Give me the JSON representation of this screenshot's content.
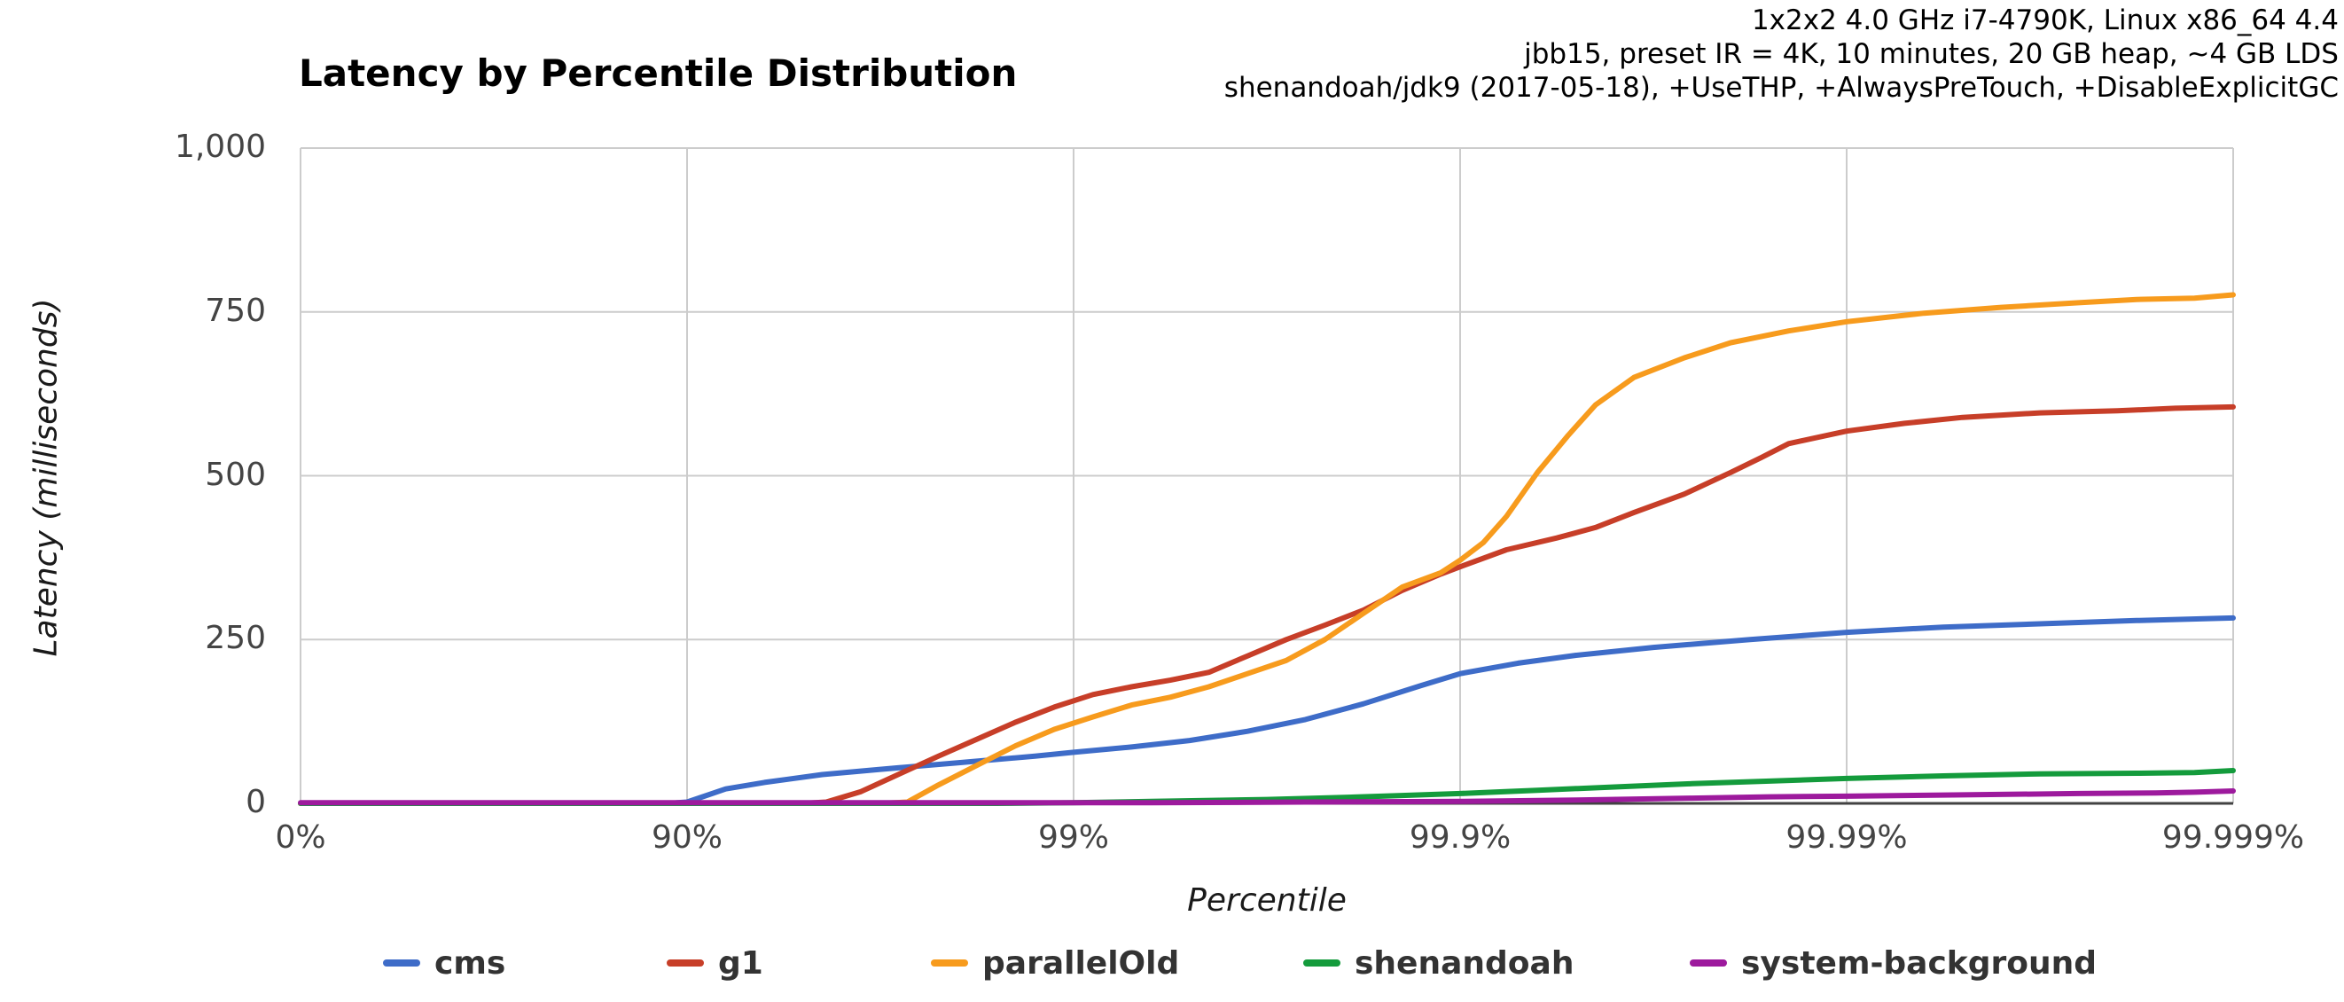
{
  "title": "Latency by Percentile Distribution",
  "header": {
    "lines": [
      "1x2x2 4.0 GHz i7-4790K, Linux x86_64 4.4",
      "jbb15, preset IR = 4K, 10 minutes, 20 GB heap, ~4 GB LDS",
      "shenandoah/jdk9 (2017-05-18), +UseTHP, +AlwaysPreTouch, +DisableExplicitGC"
    ]
  },
  "axes": {
    "y": {
      "title": "Latency (milliseconds)"
    },
    "x": {
      "title": "Percentile"
    }
  },
  "colors": {
    "grid": "#cccccc",
    "axis_line": "#424242",
    "tick_text": "#444444"
  },
  "chart_data": {
    "type": "line",
    "title": "Latency by Percentile Distribution",
    "xlabel": "Percentile",
    "ylabel": "Latency (milliseconds)",
    "x_scale": "log-percentile, x expressed in decades d = -log10(1-p), d range 0..5",
    "x_ticks": [
      {
        "label": "0%",
        "decade": 0
      },
      {
        "label": "90%",
        "decade": 1
      },
      {
        "label": "99%",
        "decade": 2
      },
      {
        "label": "99.9%",
        "decade": 3
      },
      {
        "label": "99.99%",
        "decade": 4
      },
      {
        "label": "99.999%",
        "decade": 5
      }
    ],
    "ylim": [
      0,
      1000
    ],
    "y_ticks": [
      {
        "label": "0",
        "value": 0
      },
      {
        "label": "250",
        "value": 250
      },
      {
        "label": "500",
        "value": 500
      },
      {
        "label": "750",
        "value": 750
      },
      {
        "label": "1,000",
        "value": 1000
      }
    ],
    "grid": true,
    "legend_position": "bottom",
    "series": [
      {
        "name": "cms",
        "color": "#3E6CC8",
        "points": [
          [
            0,
            0
          ],
          [
            0.5,
            0
          ],
          [
            0.95,
            0
          ],
          [
            1.0,
            2
          ],
          [
            1.05,
            12
          ],
          [
            1.1,
            22
          ],
          [
            1.2,
            32
          ],
          [
            1.35,
            44
          ],
          [
            1.5,
            52
          ],
          [
            1.7,
            62
          ],
          [
            1.9,
            72
          ],
          [
            2.0,
            78
          ],
          [
            2.15,
            86
          ],
          [
            2.3,
            96
          ],
          [
            2.45,
            110
          ],
          [
            2.6,
            128
          ],
          [
            2.75,
            152
          ],
          [
            2.9,
            180
          ],
          [
            3.0,
            198
          ],
          [
            3.15,
            214
          ],
          [
            3.3,
            226
          ],
          [
            3.5,
            238
          ],
          [
            3.75,
            250
          ],
          [
            4.0,
            261
          ],
          [
            4.25,
            269
          ],
          [
            4.5,
            274
          ],
          [
            4.75,
            279
          ],
          [
            5.0,
            283
          ]
        ]
      },
      {
        "name": "g1",
        "color": "#C73E28",
        "points": [
          [
            0,
            0
          ],
          [
            1.3,
            0
          ],
          [
            1.36,
            2
          ],
          [
            1.45,
            18
          ],
          [
            1.55,
            45
          ],
          [
            1.65,
            72
          ],
          [
            1.75,
            98
          ],
          [
            1.85,
            124
          ],
          [
            1.95,
            147
          ],
          [
            2.05,
            166
          ],
          [
            2.15,
            178
          ],
          [
            2.25,
            188
          ],
          [
            2.35,
            200
          ],
          [
            2.45,
            225
          ],
          [
            2.55,
            250
          ],
          [
            2.65,
            272
          ],
          [
            2.75,
            295
          ],
          [
            2.85,
            325
          ],
          [
            2.95,
            350
          ],
          [
            3.0,
            361
          ],
          [
            3.12,
            387
          ],
          [
            3.25,
            405
          ],
          [
            3.35,
            421
          ],
          [
            3.45,
            444
          ],
          [
            3.58,
            472
          ],
          [
            3.7,
            505
          ],
          [
            3.78,
            528
          ],
          [
            3.85,
            549
          ],
          [
            4.0,
            568
          ],
          [
            4.15,
            580
          ],
          [
            4.3,
            589
          ],
          [
            4.5,
            596
          ],
          [
            4.7,
            599
          ],
          [
            4.85,
            603
          ],
          [
            5.0,
            605
          ]
        ]
      },
      {
        "name": "parallelOld",
        "color": "#F79B1D",
        "points": [
          [
            0,
            0
          ],
          [
            1.5,
            0
          ],
          [
            1.57,
            2
          ],
          [
            1.65,
            28
          ],
          [
            1.75,
            58
          ],
          [
            1.85,
            88
          ],
          [
            1.95,
            113
          ],
          [
            2.05,
            132
          ],
          [
            2.15,
            150
          ],
          [
            2.25,
            162
          ],
          [
            2.35,
            178
          ],
          [
            2.45,
            198
          ],
          [
            2.55,
            218
          ],
          [
            2.65,
            250
          ],
          [
            2.75,
            290
          ],
          [
            2.85,
            330
          ],
          [
            2.95,
            352
          ],
          [
            3.0,
            371
          ],
          [
            3.06,
            398
          ],
          [
            3.12,
            438
          ],
          [
            3.2,
            505
          ],
          [
            3.28,
            562
          ],
          [
            3.35,
            608
          ],
          [
            3.45,
            650
          ],
          [
            3.58,
            680
          ],
          [
            3.7,
            703
          ],
          [
            3.85,
            721
          ],
          [
            4.0,
            735
          ],
          [
            4.2,
            748
          ],
          [
            4.4,
            757
          ],
          [
            4.6,
            764
          ],
          [
            4.75,
            769
          ],
          [
            4.9,
            771
          ],
          [
            5.0,
            776
          ]
        ]
      },
      {
        "name": "shenandoah",
        "color": "#149B3C",
        "points": [
          [
            0,
            0
          ],
          [
            1.8,
            0
          ],
          [
            2.0,
            1
          ],
          [
            2.2,
            3
          ],
          [
            2.5,
            6
          ],
          [
            2.7,
            9
          ],
          [
            2.85,
            12
          ],
          [
            3.0,
            15
          ],
          [
            3.2,
            20
          ],
          [
            3.4,
            25
          ],
          [
            3.6,
            30
          ],
          [
            3.8,
            34
          ],
          [
            4.0,
            38
          ],
          [
            4.25,
            42
          ],
          [
            4.5,
            45
          ],
          [
            4.75,
            46
          ],
          [
            4.9,
            47
          ],
          [
            5.0,
            50
          ]
        ]
      },
      {
        "name": "system-background",
        "color": "#9D1A9D",
        "points": [
          [
            0,
            1
          ],
          [
            1.5,
            1
          ],
          [
            2.2,
            1
          ],
          [
            2.6,
            2
          ],
          [
            3.0,
            3
          ],
          [
            3.3,
            5
          ],
          [
            3.6,
            8
          ],
          [
            3.8,
            10
          ],
          [
            4.0,
            11
          ],
          [
            4.3,
            13
          ],
          [
            4.6,
            15
          ],
          [
            4.8,
            16
          ],
          [
            4.9,
            17
          ],
          [
            5.0,
            19
          ]
        ]
      }
    ]
  }
}
